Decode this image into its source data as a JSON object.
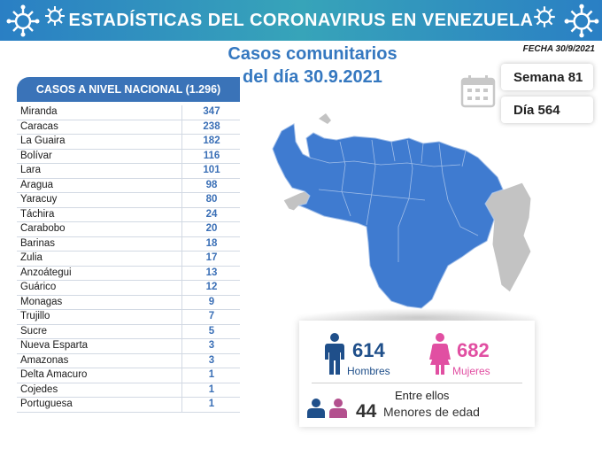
{
  "header": {
    "title": "ESTADÍSTICAS DEL CORONAVIRUS EN VENEZUELA",
    "date": "FECHA 30/9/2021"
  },
  "subtitle": {
    "line1": "Casos comunitarios",
    "line2": "del día 30.9.2021"
  },
  "week": {
    "label": "Semana 81"
  },
  "day": {
    "label": "Día 564"
  },
  "table": {
    "header": "CASOS A NIVEL NACIONAL (1.296)",
    "rows": [
      {
        "state": "Miranda",
        "cases": "347"
      },
      {
        "state": "Caracas",
        "cases": "238"
      },
      {
        "state": "La Guaira",
        "cases": "182"
      },
      {
        "state": "Bolívar",
        "cases": "116"
      },
      {
        "state": "Lara",
        "cases": "101"
      },
      {
        "state": "Aragua",
        "cases": "98"
      },
      {
        "state": "Yaracuy",
        "cases": "80"
      },
      {
        "state": "Táchira",
        "cases": "24"
      },
      {
        "state": "Carabobo",
        "cases": "20"
      },
      {
        "state": "Barinas",
        "cases": "18"
      },
      {
        "state": "Zulia",
        "cases": "17"
      },
      {
        "state": "Anzoátegui",
        "cases": "13"
      },
      {
        "state": "Guárico",
        "cases": "12"
      },
      {
        "state": "Monagas",
        "cases": "9"
      },
      {
        "state": "Trujillo",
        "cases": "7"
      },
      {
        "state": "Sucre",
        "cases": "5"
      },
      {
        "state": "Nueva Esparta",
        "cases": "3"
      },
      {
        "state": "Amazonas",
        "cases": "3"
      },
      {
        "state": "Delta Amacuro",
        "cases": "1"
      },
      {
        "state": "Cojedes",
        "cases": "1"
      },
      {
        "state": "Portuguesa",
        "cases": "1"
      }
    ]
  },
  "stats": {
    "men": {
      "count": "614",
      "label": "Hombres"
    },
    "women": {
      "count": "682",
      "label": "Mujeres"
    },
    "minors": {
      "intro": "Entre ellos",
      "count": "44",
      "label": "Menores de edad"
    }
  },
  "colors": {
    "blue": "#3a73b8",
    "map_blue": "#3f7bd0",
    "map_gray": "#c3c3c3",
    "men": "#1f4f8a",
    "women": "#e14fa2"
  },
  "icons": [
    "virus-icon",
    "calendar-icon",
    "man-icon",
    "woman-icon",
    "children-icon",
    "venezuela-map"
  ]
}
